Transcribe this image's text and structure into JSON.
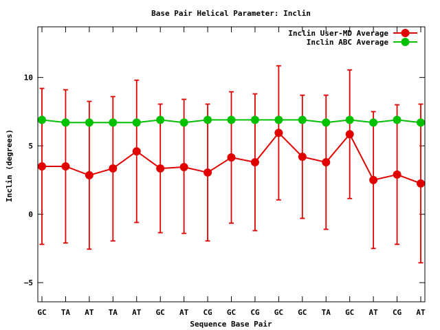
{
  "chart_data": {
    "type": "line",
    "title": "Base Pair Helical Parameter: Inclin",
    "xlabel": "Sequence Base Pair",
    "ylabel": "Inclin (degrees)",
    "ylim": [
      -6.4,
      13.7
    ],
    "yticks": [
      -5,
      0,
      5,
      10
    ],
    "ytick_labels": [
      "−5",
      "0",
      "5",
      "10"
    ],
    "grid": false,
    "legend_position": "top-right",
    "categories": [
      "GC",
      "TA",
      "AT",
      "TA",
      "AT",
      "GC",
      "AT",
      "CG",
      "GC",
      "CG",
      "GC",
      "GC",
      "TA",
      "GC",
      "AT",
      "CG",
      "AT"
    ],
    "series": [
      {
        "name": "Inclin User-MD Average",
        "color": "#e00000",
        "values": [
          3.5,
          3.5,
          2.85,
          3.35,
          4.6,
          3.35,
          3.45,
          3.05,
          4.15,
          3.8,
          5.95,
          4.2,
          3.8,
          5.85,
          2.5,
          2.9,
          2.25
        ],
        "error_low": [
          -2.2,
          -2.1,
          -2.55,
          -1.95,
          -0.6,
          -1.35,
          -1.4,
          -1.95,
          -0.65,
          -1.2,
          1.05,
          -0.3,
          -1.1,
          1.15,
          -2.5,
          -2.2,
          -3.55
        ],
        "error_high": [
          9.2,
          9.1,
          8.25,
          8.6,
          9.8,
          8.05,
          8.4,
          8.05,
          8.95,
          8.8,
          10.85,
          8.7,
          8.7,
          10.55,
          7.5,
          8.0,
          8.05
        ]
      },
      {
        "name": "Inclin ABC Average",
        "color": "#00c000",
        "values": [
          6.9,
          6.7,
          6.7,
          6.7,
          6.7,
          6.9,
          6.7,
          6.9,
          6.9,
          6.9,
          6.9,
          6.9,
          6.7,
          6.9,
          6.7,
          6.9,
          6.7
        ]
      }
    ]
  }
}
